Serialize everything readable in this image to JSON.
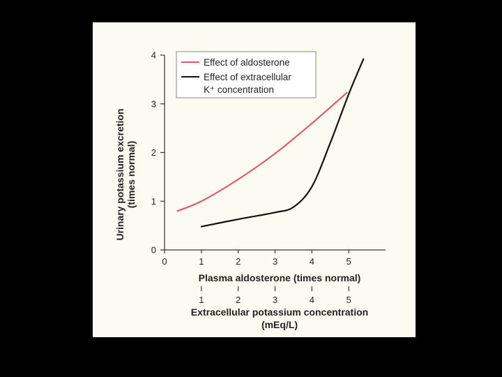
{
  "chart_data": {
    "type": "line",
    "title": "",
    "ylabel": "Urinary potassium excretion",
    "ylabel_line2": "(times normal)",
    "xlabel": "Plasma aldosterone (times normal)",
    "xlabel2": "Extracellular potassium concentration",
    "xlabel2_line2": "(mEq/L)",
    "xlim": [
      0,
      6
    ],
    "ylim": [
      0,
      4
    ],
    "x_ticks": [
      "0",
      "1",
      "2",
      "3",
      "4",
      "5"
    ],
    "x_tick_values": [
      0,
      1,
      2,
      3,
      4,
      5
    ],
    "x2_ticks": [
      "1",
      "2",
      "3",
      "4",
      "5"
    ],
    "x2_tick_values": [
      1,
      2,
      3,
      4,
      5
    ],
    "y_ticks": [
      "0",
      "1",
      "2",
      "3",
      "4"
    ],
    "y_tick_values": [
      0,
      1,
      2,
      3,
      4
    ],
    "grid": false,
    "legend_position": "top-right",
    "series": [
      {
        "name": "Effect of aldosterone",
        "color": "#e05a66",
        "x": [
          0.35,
          1.0,
          2.0,
          3.0,
          4.0,
          4.95
        ],
        "y": [
          0.8,
          1.0,
          1.45,
          1.98,
          2.6,
          3.23
        ]
      },
      {
        "name": "Effect of extracellular",
        "name_line2": "K⁺ concentration",
        "color": "#111111",
        "x": [
          1.0,
          2.0,
          3.0,
          3.5,
          4.0,
          4.5,
          5.0,
          5.4
        ],
        "y": [
          0.48,
          0.63,
          0.77,
          0.88,
          1.3,
          2.2,
          3.2,
          3.92
        ]
      }
    ]
  }
}
